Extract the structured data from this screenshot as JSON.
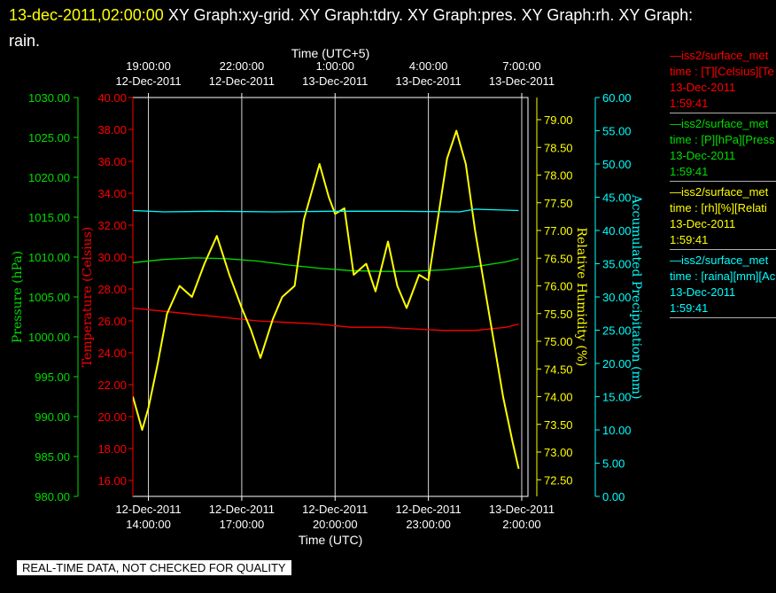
{
  "header": {
    "timestamp": "13-dec-2011,02:00:00",
    "graphs": "XY Graph:xy-grid.  XY Graph:tdry.  XY Graph:pres.  XY Graph:rh.  XY Graph:",
    "line2": "rain."
  },
  "colors": {
    "temp": "#ff0000",
    "pres": "#00dd00",
    "rh": "#ffff00",
    "rain": "#00ffff",
    "grid": "#ffffff"
  },
  "chart_data": {
    "type": "line",
    "x_top_label": "Time (UTC+5)",
    "x_bottom_label": "Time (UTC)",
    "x_top_ticks": [
      {
        "t": "19:00:00",
        "d": "12-Dec-2011"
      },
      {
        "t": "22:00:00",
        "d": "12-Dec-2011"
      },
      {
        "t": "1:00:00",
        "d": "13-Dec-2011"
      },
      {
        "t": "4:00:00",
        "d": "13-Dec-2011"
      },
      {
        "t": "7:00:00",
        "d": "13-Dec-2011"
      }
    ],
    "x_bottom_ticks": [
      {
        "d": "12-Dec-2011",
        "t": "14:00:00"
      },
      {
        "d": "12-Dec-2011",
        "t": "17:00:00"
      },
      {
        "d": "12-Dec-2011",
        "t": "20:00:00"
      },
      {
        "d": "12-Dec-2011",
        "t": "23:00:00"
      },
      {
        "d": "13-Dec-2011",
        "t": "2:00:00"
      }
    ],
    "xlim_hours_utc": [
      13.5,
      26.2
    ],
    "axes": {
      "pres": {
        "label": "Pressure (hPa)",
        "range": [
          980,
          1030
        ],
        "ticks": [
          "980.00",
          "985.00",
          "990.00",
          "995.00",
          "1000.00",
          "1005.00",
          "1010.00",
          "1015.00",
          "1020.00",
          "1025.00",
          "1030.00"
        ]
      },
      "temp": {
        "label": "Temperature (Celsius)",
        "range": [
          15,
          40
        ],
        "ticks": [
          "16.00",
          "18.00",
          "20.00",
          "22.00",
          "24.00",
          "26.00",
          "28.00",
          "30.00",
          "32.00",
          "34.00",
          "36.00",
          "38.00",
          "40.00"
        ]
      },
      "rh": {
        "label": "Relative Humidity (%)",
        "range": [
          72.2,
          79.4
        ],
        "ticks": [
          "72.50",
          "73.00",
          "73.50",
          "74.00",
          "74.50",
          "75.00",
          "75.50",
          "76.00",
          "76.50",
          "77.00",
          "77.50",
          "78.00",
          "78.50",
          "79.00"
        ]
      },
      "rain": {
        "label": "Accumulated Precipitation (mm)",
        "range": [
          0,
          60
        ],
        "ticks": [
          "0.00",
          "5.00",
          "10.00",
          "15.00",
          "20.00",
          "25.00",
          "30.00",
          "35.00",
          "40.00",
          "45.00",
          "50.00",
          "55.00",
          "60.00"
        ]
      }
    },
    "series": [
      {
        "key": "temp",
        "x": [
          13.5,
          14.5,
          15.5,
          16.5,
          17.5,
          18.5,
          19.5,
          20.5,
          21.5,
          22.5,
          23.5,
          24.5,
          25.5,
          25.9
        ],
        "y": [
          26.8,
          26.6,
          26.4,
          26.2,
          26.0,
          25.9,
          25.8,
          25.6,
          25.6,
          25.5,
          25.4,
          25.4,
          25.6,
          25.8
        ]
      },
      {
        "key": "pres",
        "x": [
          13.5,
          14.5,
          15.5,
          16.5,
          17.5,
          18.5,
          19.5,
          20.5,
          21.5,
          22.5,
          23.5,
          24.5,
          25.5,
          25.9
        ],
        "y": [
          1009.3,
          1009.7,
          1009.9,
          1009.8,
          1009.5,
          1009.0,
          1008.6,
          1008.3,
          1008.2,
          1008.2,
          1008.4,
          1008.8,
          1009.4,
          1009.8
        ]
      },
      {
        "key": "rh",
        "x": [
          13.5,
          13.8,
          14.0,
          14.3,
          14.6,
          15.0,
          15.4,
          15.8,
          16.2,
          16.6,
          17.0,
          17.3,
          17.6,
          18.0,
          18.3,
          18.7,
          19.0,
          19.3,
          19.5,
          19.8,
          20.0,
          20.3,
          20.6,
          21.0,
          21.3,
          21.7,
          22.0,
          22.3,
          22.7,
          23.0,
          23.3,
          23.6,
          23.9,
          24.2,
          24.5,
          24.8,
          25.1,
          25.4,
          25.7,
          25.9
        ],
        "y": [
          74.0,
          73.4,
          73.8,
          74.6,
          75.5,
          76.0,
          75.8,
          76.4,
          76.9,
          76.2,
          75.6,
          75.2,
          74.7,
          75.4,
          75.8,
          76.0,
          77.2,
          77.8,
          78.2,
          77.6,
          77.3,
          77.4,
          76.2,
          76.4,
          75.9,
          76.8,
          76.0,
          75.6,
          76.2,
          76.1,
          77.2,
          78.3,
          78.8,
          78.2,
          77.0,
          76.0,
          75.0,
          74.0,
          73.2,
          72.7
        ]
      },
      {
        "key": "rain",
        "x": [
          13.5,
          14.5,
          16.0,
          18.0,
          20.0,
          22.0,
          24.0,
          24.5,
          25.9
        ],
        "y": [
          43.0,
          42.8,
          42.9,
          42.8,
          42.9,
          42.9,
          42.8,
          43.2,
          43.0
        ]
      }
    ]
  },
  "legend": [
    {
      "key": "temp",
      "l1": "—iss2/surface_met",
      "l2": "time : [T][Celsius][Te",
      "l3": "13-Dec-2011",
      "l4": "1:59:41"
    },
    {
      "key": "pres",
      "l1": "—iss2/surface_met",
      "l2": "time : [P][hPa][Press",
      "l3": "13-Dec-2011",
      "l4": "1:59:41"
    },
    {
      "key": "rh",
      "l1": "—iss2/surface_met",
      "l2": "time : [rh][%][Relati",
      "l3": "13-Dec-2011",
      "l4": "1:59:41"
    },
    {
      "key": "rain",
      "l1": "—iss2/surface_met",
      "l2": "time : [raina][mm][Ac",
      "l3": "13-Dec-2011",
      "l4": "1:59:41"
    }
  ],
  "footer": {
    "disclaimer": "REAL-TIME DATA, NOT CHECKED FOR QUALITY"
  }
}
